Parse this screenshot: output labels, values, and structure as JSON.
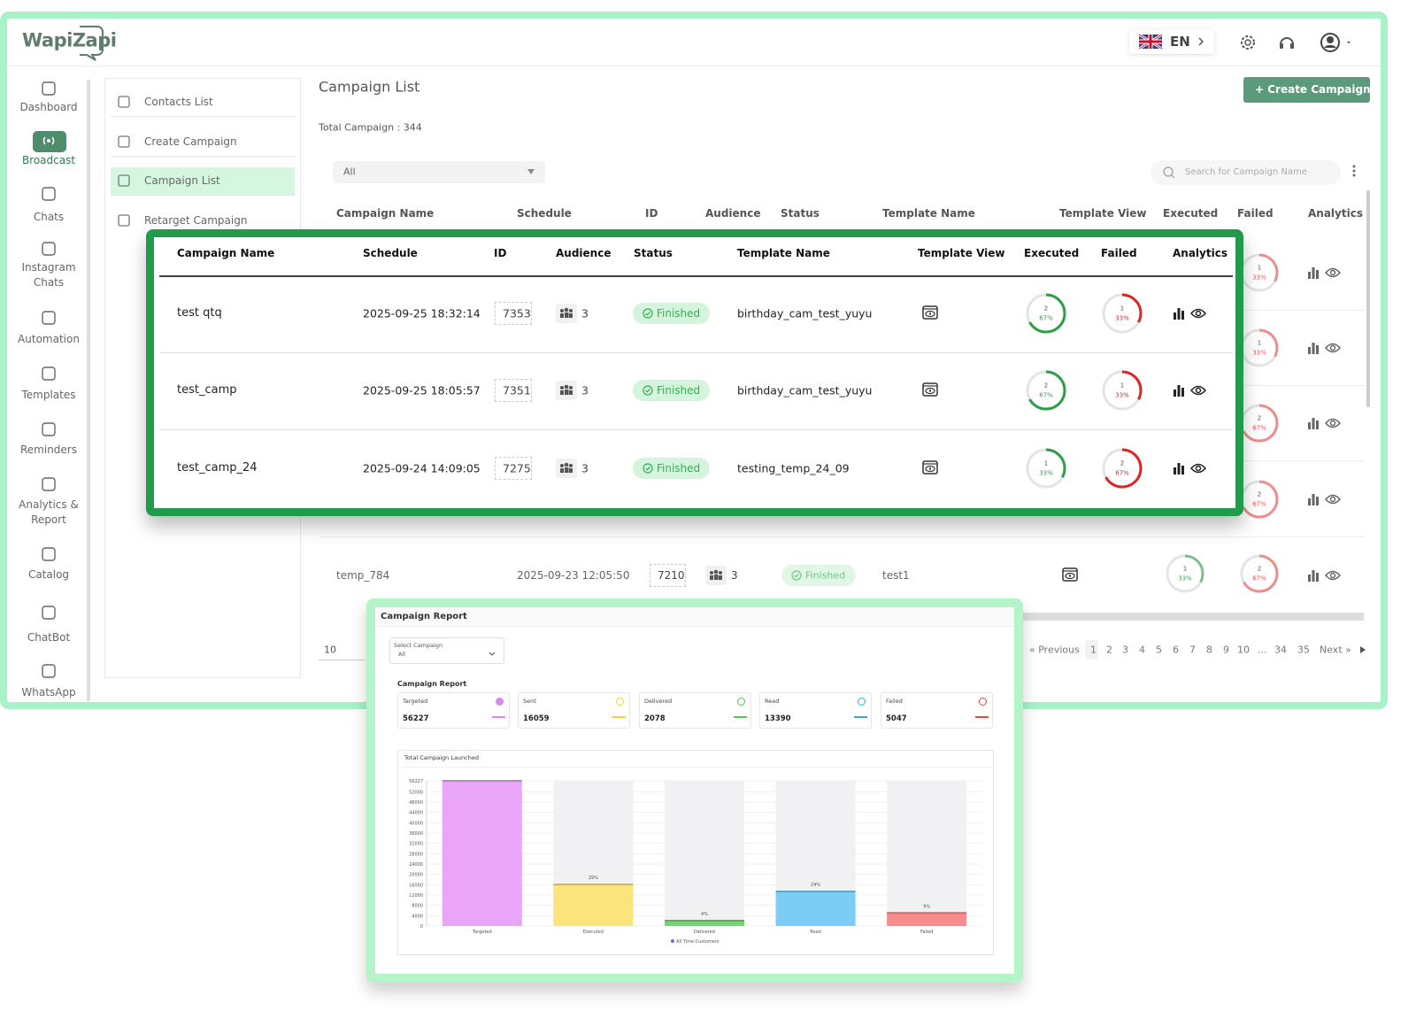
{
  "header": {
    "logo": "WapiZapi",
    "language": "EN"
  },
  "sidebar": {
    "items": [
      "Dashboard",
      "Broadcast",
      "Chats",
      "Instagram Chats",
      "Automation",
      "Templates",
      "Reminders",
      "Analytics & Report",
      "Catalog",
      "ChatBot",
      "WhatsApp"
    ]
  },
  "submenu": {
    "items": [
      "Contacts List",
      "Create Campaign",
      "Campaign List",
      "Retarget Campaign"
    ]
  },
  "page": {
    "title": "Campaign List",
    "total": "Total Campaign : 344",
    "create_button": "+ Create Campaign",
    "filter": "All",
    "search": "Search for Campaign Name",
    "columns": [
      "Campaign Name",
      "Schedule",
      "ID",
      "Audience",
      "Status",
      "Template Name",
      "Template View",
      "Executed",
      "Failed",
      "Analytics"
    ],
    "hidden_rows_failed": [
      {
        "count": "1",
        "percent": 33,
        "label": "33%"
      },
      {
        "count": "1",
        "percent": 33,
        "label": "33%"
      },
      {
        "count": "2",
        "percent": 67,
        "label": "67%"
      },
      {
        "count": "2",
        "percent": 67,
        "label": "67%"
      }
    ],
    "row": {
      "name": "temp_784",
      "schedule": "2025-09-23 12:05:50",
      "id": "7210",
      "audience": "3",
      "status": "Finished",
      "template": "test1",
      "executed": {
        "count": "1",
        "percent": 33,
        "label": "33%"
      },
      "failed": {
        "count": "2",
        "percent": 67,
        "label": "67%"
      }
    },
    "page_size": "10",
    "pagination": [
      "« Previous",
      "1",
      "2",
      "3",
      "4",
      "5",
      "6",
      "7",
      "8",
      "9",
      "10",
      "...",
      "34",
      "35",
      "Next »"
    ]
  },
  "callout": {
    "columns": [
      "Campaign Name",
      "Schedule",
      "ID",
      "Audience",
      "Status",
      "Template Name",
      "Template View",
      "Executed",
      "Failed",
      "Analytics"
    ],
    "rows": [
      {
        "name": "test qtq",
        "schedule": "2025-09-25 18:32:14",
        "id": "7353",
        "audience": "3",
        "status": "Finished",
        "template": "birthday_cam_test_yuyu",
        "executed": {
          "count": "2",
          "percent": 67,
          "label": "67%"
        },
        "failed": {
          "count": "1",
          "percent": 33,
          "label": "33%"
        }
      },
      {
        "name": "test_camp",
        "schedule": "2025-09-25 18:05:57",
        "id": "7351",
        "audience": "3",
        "status": "Finished",
        "template": "birthday_cam_test_yuyu",
        "executed": {
          "count": "2",
          "percent": 67,
          "label": "67%"
        },
        "failed": {
          "count": "1",
          "percent": 33,
          "label": "33%"
        }
      },
      {
        "name": "test_camp_24",
        "schedule": "2025-09-24 14:09:05",
        "id": "7275",
        "audience": "3",
        "status": "Finished",
        "template": "testing_temp_24_09",
        "executed": {
          "count": "1",
          "percent": 33,
          "label": "33%"
        },
        "failed": {
          "count": "2",
          "percent": 67,
          "label": "67%"
        }
      }
    ]
  },
  "report": {
    "title": "Campaign Report",
    "select_label": "Select Campaign",
    "select_value": "All",
    "subtitle": "Campaign Report",
    "cards": [
      {
        "name": "Targeted",
        "value": "56227"
      },
      {
        "name": "Sent",
        "value": "16059"
      },
      {
        "name": "Delivered",
        "value": "2078"
      },
      {
        "name": "Read",
        "value": "13390"
      },
      {
        "name": "Failed",
        "value": "5047"
      }
    ],
    "chart": {
      "type": "bar",
      "title": "Total Campaign Launched",
      "categories": [
        "Targeted",
        "Executed",
        "Delivered",
        "Read",
        "Failed"
      ],
      "values": [
        56227,
        16059,
        2078,
        13390,
        5047
      ],
      "value_labels": [
        null,
        "29%",
        "4%",
        "24%",
        "9%"
      ],
      "colors": [
        "#e9a6f8",
        "#fbe47c",
        "#72d66e",
        "#7ccdf6",
        "#f88b8b"
      ],
      "legend": "All Time Customers",
      "legend_color": "#8e5bd6",
      "ylim": [
        0,
        56227
      ],
      "yticks": [
        0,
        4000,
        8000,
        12000,
        16000,
        20000,
        24000,
        28000,
        32000,
        36000,
        40000,
        44000,
        48000,
        52000,
        56227
      ],
      "grid": true
    }
  }
}
